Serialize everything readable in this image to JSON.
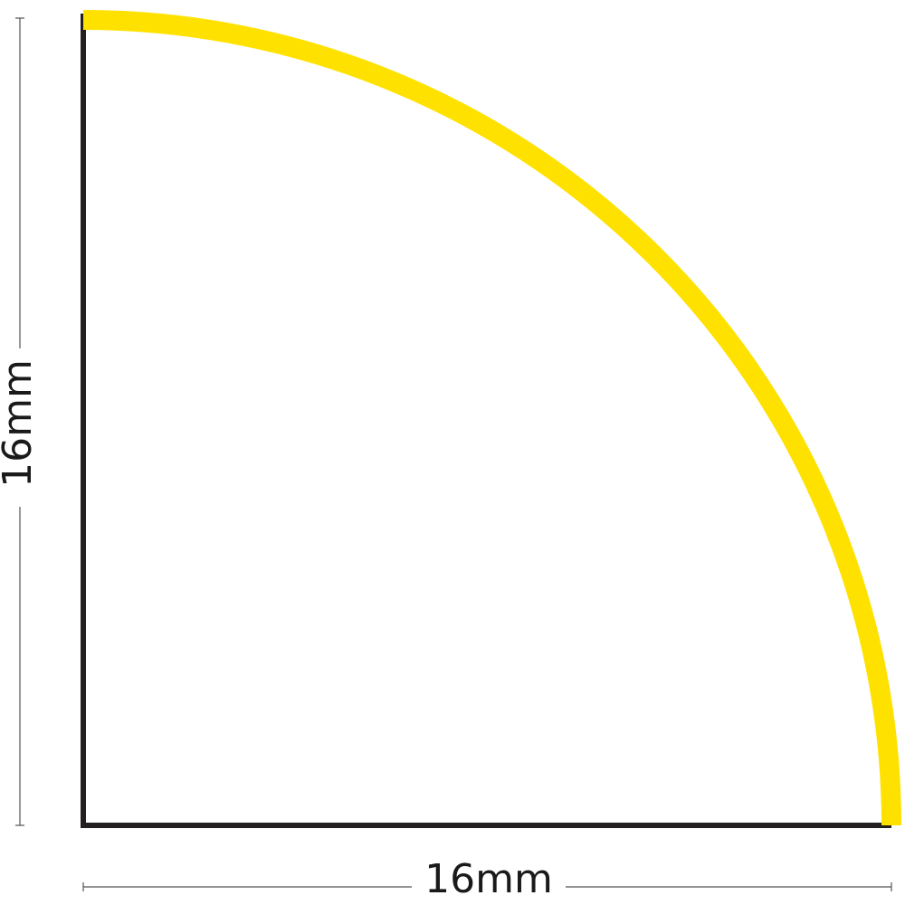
{
  "dimensions": {
    "height": "16mm",
    "width": "16mm"
  }
}
